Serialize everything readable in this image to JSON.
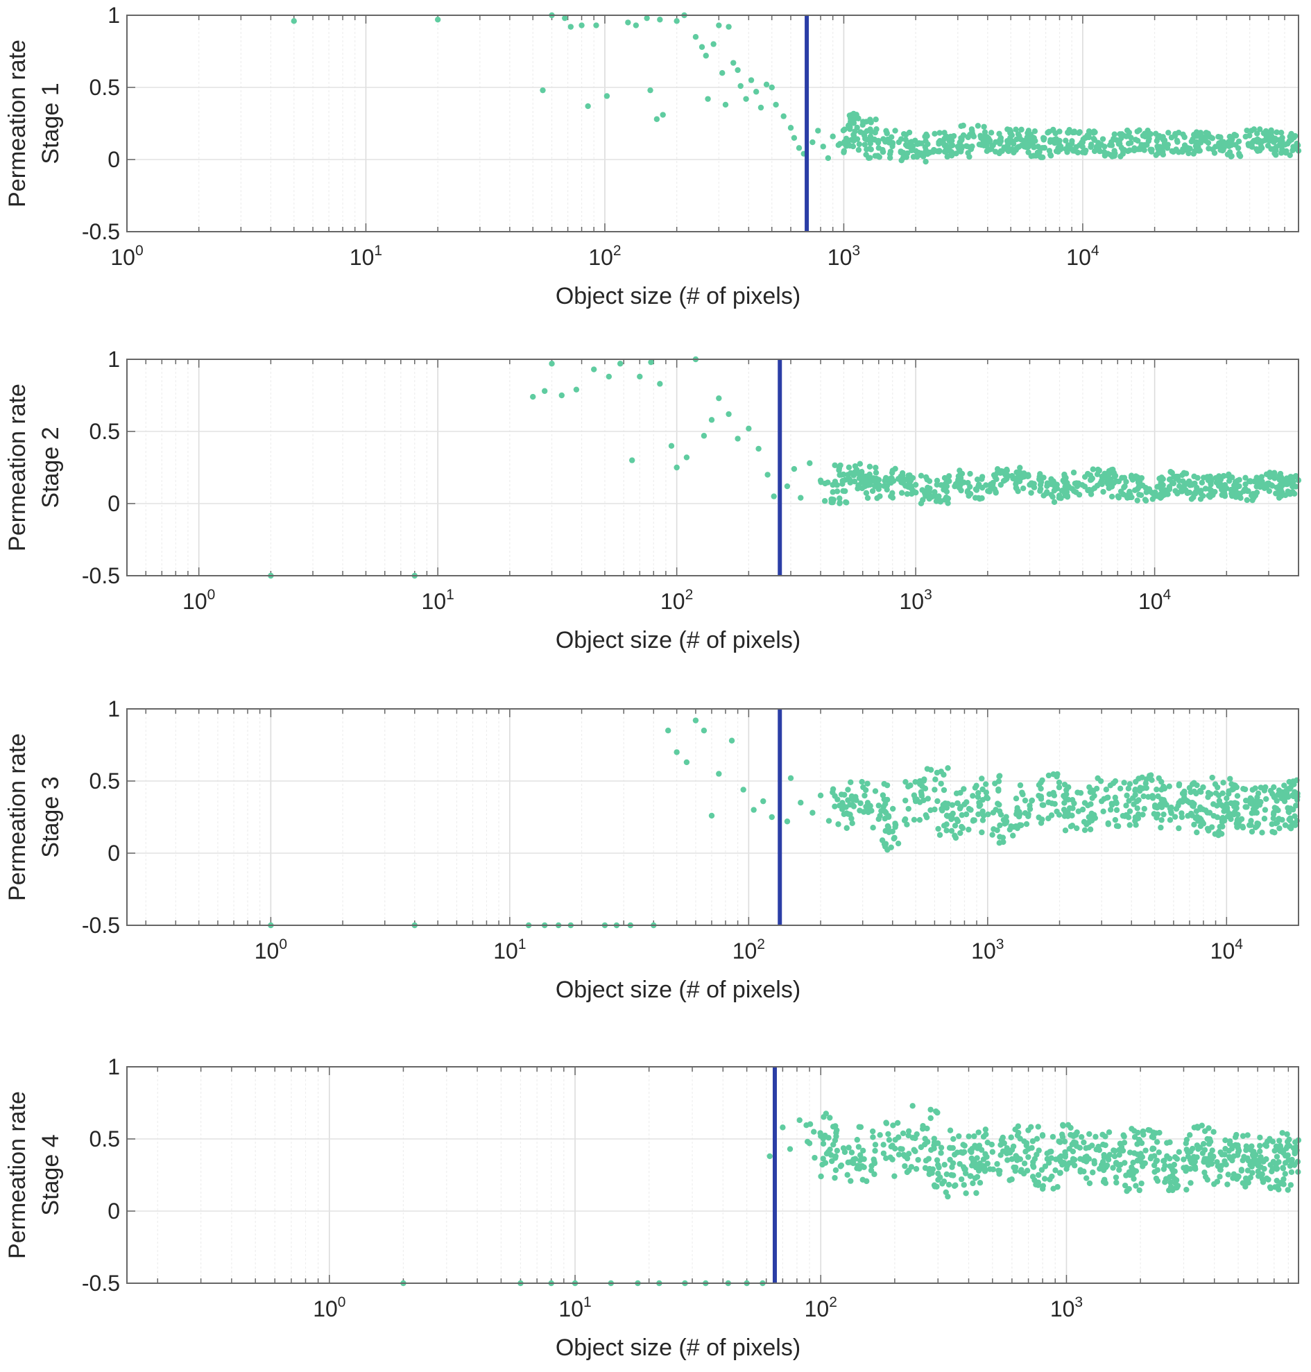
{
  "colors": {
    "points": "#5fcca0",
    "threshold": "#2b3ea6",
    "axis": "#666666",
    "grid": "#e6e6e6"
  },
  "chart_data": [
    {
      "type": "scatter",
      "xlabel": "Object size (# of pixels)",
      "ylabel_line1": "Permeation rate",
      "ylabel_line2": "Stage 1",
      "xscale": "log",
      "xlim": [
        1,
        80000
      ],
      "ylim": [
        -0.5,
        1
      ],
      "xticks": [
        1,
        10,
        100,
        1000,
        10000
      ],
      "xtick_labels": [
        "10^0",
        "10^1",
        "10^2",
        "10^3",
        "10^4"
      ],
      "yticks": [
        -0.5,
        0,
        0.5,
        1
      ],
      "ytick_labels": [
        "-0.5",
        "0",
        "0.5",
        "1"
      ],
      "grid": true,
      "threshold_x": 700,
      "points": [
        [
          5,
          0.96
        ],
        [
          20,
          0.97
        ],
        [
          55,
          0.48
        ],
        [
          60,
          1.0
        ],
        [
          68,
          0.98
        ],
        [
          72,
          0.92
        ],
        [
          80,
          0.93
        ],
        [
          85,
          0.37
        ],
        [
          92,
          0.93
        ],
        [
          102,
          0.44
        ],
        [
          125,
          0.95
        ],
        [
          135,
          0.93
        ],
        [
          150,
          0.98
        ],
        [
          155,
          0.48
        ],
        [
          170,
          0.97
        ],
        [
          165,
          0.28
        ],
        [
          175,
          0.31
        ],
        [
          200,
          0.96
        ],
        [
          215,
          1.0
        ],
        [
          240,
          0.85
        ],
        [
          255,
          0.78
        ],
        [
          265,
          0.72
        ],
        [
          270,
          0.42
        ],
        [
          285,
          0.8
        ],
        [
          300,
          0.93
        ],
        [
          310,
          0.6
        ],
        [
          320,
          0.38
        ],
        [
          330,
          0.92
        ],
        [
          345,
          0.67
        ],
        [
          360,
          0.62
        ],
        [
          370,
          0.51
        ],
        [
          390,
          0.42
        ],
        [
          410,
          0.55
        ],
        [
          430,
          0.47
        ],
        [
          450,
          0.36
        ],
        [
          475,
          0.52
        ],
        [
          500,
          0.5
        ],
        [
          520,
          0.38
        ],
        [
          560,
          0.3
        ],
        [
          600,
          0.22
        ],
        [
          620,
          0.15
        ],
        [
          650,
          0.08
        ],
        [
          680,
          0.04
        ],
        [
          740,
          0.12
        ],
        [
          780,
          0.2
        ],
        [
          820,
          0.09
        ],
        [
          860,
          0.01
        ],
        [
          900,
          0.16
        ],
        [
          950,
          0.1
        ],
        [
          1000,
          0.05
        ],
        [
          1100,
          0.13
        ],
        [
          1200,
          0.24
        ],
        [
          1400,
          0.08
        ],
        [
          1700,
          0.12
        ],
        [
          2000,
          0.06
        ],
        [
          2500,
          0.12
        ],
        [
          3000,
          0.09
        ],
        [
          3500,
          0.16
        ],
        [
          4500,
          0.11
        ],
        [
          5500,
          0.14
        ],
        [
          6500,
          0.09
        ],
        [
          8000,
          0.13
        ],
        [
          10000,
          0.12
        ],
        [
          13000,
          0.1
        ],
        [
          17000,
          0.13
        ],
        [
          22000,
          0.11
        ],
        [
          30000,
          0.12
        ],
        [
          40000,
          0.1
        ],
        [
          55000,
          0.13
        ],
        [
          72000,
          0.11
        ]
      ]
    },
    {
      "type": "scatter",
      "xlabel": "Object size (# of pixels)",
      "ylabel_line1": "Permeation rate",
      "ylabel_line2": "Stage 2",
      "xscale": "log",
      "xlim": [
        0.5,
        40000
      ],
      "ylim": [
        -0.5,
        1
      ],
      "xticks": [
        1,
        10,
        100,
        1000,
        10000
      ],
      "xtick_labels": [
        "10^0",
        "10^1",
        "10^2",
        "10^3",
        "10^4"
      ],
      "yticks": [
        -0.5,
        0,
        0.5,
        1
      ],
      "ytick_labels": [
        "-0.5",
        "0",
        "0.5",
        "1"
      ],
      "grid": true,
      "threshold_x": 270,
      "points": [
        [
          2,
          -0.5
        ],
        [
          8,
          -0.5
        ],
        [
          25,
          0.74
        ],
        [
          28,
          0.78
        ],
        [
          30,
          0.97
        ],
        [
          33,
          0.75
        ],
        [
          38,
          0.79
        ],
        [
          45,
          0.93
        ],
        [
          52,
          0.88
        ],
        [
          58,
          0.97
        ],
        [
          65,
          0.3
        ],
        [
          70,
          0.88
        ],
        [
          78,
          0.98
        ],
        [
          85,
          0.83
        ],
        [
          95,
          0.4
        ],
        [
          100,
          0.25
        ],
        [
          110,
          0.32
        ],
        [
          120,
          1.0
        ],
        [
          130,
          0.47
        ],
        [
          140,
          0.58
        ],
        [
          150,
          0.73
        ],
        [
          165,
          0.62
        ],
        [
          180,
          0.45
        ],
        [
          200,
          0.52
        ],
        [
          220,
          0.38
        ],
        [
          240,
          0.2
        ],
        [
          255,
          0.05
        ],
        [
          290,
          0.12
        ],
        [
          310,
          0.24
        ],
        [
          330,
          0.04
        ],
        [
          360,
          0.28
        ],
        [
          400,
          0.16
        ],
        [
          450,
          0.08
        ],
        [
          520,
          0.2
        ],
        [
          600,
          0.18
        ],
        [
          700,
          0.1
        ],
        [
          850,
          0.17
        ],
        [
          1000,
          0.13
        ],
        [
          1200,
          0.08
        ],
        [
          1500,
          0.15
        ],
        [
          1900,
          0.11
        ],
        [
          2400,
          0.17
        ],
        [
          3000,
          0.13
        ],
        [
          3800,
          0.09
        ],
        [
          4800,
          0.14
        ],
        [
          6000,
          0.16
        ],
        [
          7500,
          0.12
        ],
        [
          9500,
          0.1
        ],
        [
          12000,
          0.14
        ],
        [
          15000,
          0.11
        ],
        [
          19000,
          0.13
        ],
        [
          24000,
          0.1
        ],
        [
          30000,
          0.14
        ],
        [
          38000,
          0.12
        ]
      ]
    },
    {
      "type": "scatter",
      "xlabel": "Object size (# of pixels)",
      "ylabel_line1": "Permeation rate",
      "ylabel_line2": "Stage 3",
      "xscale": "log",
      "xlim": [
        0.25,
        20000
      ],
      "ylim": [
        -0.5,
        1
      ],
      "xticks": [
        1,
        10,
        100,
        1000,
        10000
      ],
      "xtick_labels": [
        "10^0",
        "10^1",
        "10^2",
        "10^3",
        "10^4"
      ],
      "yticks": [
        -0.5,
        0,
        0.5,
        1
      ],
      "ytick_labels": [
        "-0.5",
        "0",
        "0.5",
        "1"
      ],
      "grid": true,
      "threshold_x": 135,
      "points": [
        [
          1,
          -0.5
        ],
        [
          4,
          -0.5
        ],
        [
          12,
          -0.5
        ],
        [
          14,
          -0.5
        ],
        [
          16,
          -0.5
        ],
        [
          18,
          -0.5
        ],
        [
          25,
          -0.5
        ],
        [
          28,
          -0.5
        ],
        [
          32,
          -0.5
        ],
        [
          40,
          -0.5
        ],
        [
          46,
          0.85
        ],
        [
          50,
          0.7
        ],
        [
          55,
          0.63
        ],
        [
          60,
          0.92
        ],
        [
          65,
          0.85
        ],
        [
          70,
          0.26
        ],
        [
          75,
          0.55
        ],
        [
          85,
          0.78
        ],
        [
          95,
          0.44
        ],
        [
          105,
          0.3
        ],
        [
          115,
          0.36
        ],
        [
          125,
          0.25
        ],
        [
          145,
          0.22
        ],
        [
          150,
          0.52
        ],
        [
          165,
          0.35
        ],
        [
          185,
          0.28
        ],
        [
          200,
          0.4
        ],
        [
          240,
          0.33
        ],
        [
          280,
          0.39
        ],
        [
          350,
          0.33
        ],
        [
          400,
          0.15
        ],
        [
          500,
          0.36
        ],
        [
          600,
          0.44
        ],
        [
          700,
          0.26
        ],
        [
          850,
          0.3
        ],
        [
          1000,
          0.38
        ],
        [
          1200,
          0.22
        ],
        [
          1500,
          0.33
        ],
        [
          1900,
          0.4
        ],
        [
          2400,
          0.29
        ],
        [
          3000,
          0.36
        ],
        [
          3800,
          0.33
        ],
        [
          4700,
          0.39
        ],
        [
          5800,
          0.31
        ],
        [
          7000,
          0.35
        ],
        [
          8500,
          0.28
        ],
        [
          10000,
          0.38
        ],
        [
          12000,
          0.32
        ],
        [
          14500,
          0.3
        ],
        [
          17500,
          0.36
        ],
        [
          19500,
          0.33
        ]
      ]
    },
    {
      "type": "scatter",
      "xlabel": "Object size (# of pixels)",
      "ylabel_line1": "Permeation rate",
      "ylabel_line2": "Stage 4",
      "xscale": "log",
      "xlim": [
        0.15,
        8800
      ],
      "ylim": [
        -0.5,
        1
      ],
      "xticks": [
        1,
        10,
        100,
        1000
      ],
      "xtick_labels": [
        "10^0",
        "10^1",
        "10^2",
        "10^3"
      ],
      "yticks": [
        -0.5,
        0,
        0.5,
        1
      ],
      "ytick_labels": [
        "-0.5",
        "0",
        "0.5",
        "1"
      ],
      "grid": true,
      "threshold_x": 65,
      "points": [
        [
          2,
          -0.5
        ],
        [
          6,
          -0.5
        ],
        [
          8,
          -0.5
        ],
        [
          10,
          -0.5
        ],
        [
          14,
          -0.5
        ],
        [
          18,
          -0.5
        ],
        [
          22,
          -0.5
        ],
        [
          28,
          -0.5
        ],
        [
          34,
          -0.5
        ],
        [
          42,
          -0.5
        ],
        [
          50,
          -0.5
        ],
        [
          58,
          -0.5
        ],
        [
          62,
          0.38
        ],
        [
          70,
          0.58
        ],
        [
          75,
          0.43
        ],
        [
          82,
          0.63
        ],
        [
          90,
          0.47
        ],
        [
          100,
          0.52
        ],
        [
          115,
          0.38
        ],
        [
          130,
          0.44
        ],
        [
          150,
          0.36
        ],
        [
          180,
          0.46
        ],
        [
          220,
          0.38
        ],
        [
          260,
          0.57
        ],
        [
          300,
          0.32
        ],
        [
          340,
          0.25
        ],
        [
          380,
          0.46
        ],
        [
          440,
          0.28
        ],
        [
          500,
          0.41
        ],
        [
          600,
          0.36
        ],
        [
          700,
          0.43
        ],
        [
          820,
          0.31
        ],
        [
          950,
          0.38
        ],
        [
          1100,
          0.45
        ],
        [
          1300,
          0.33
        ],
        [
          1500,
          0.39
        ],
        [
          1800,
          0.27
        ],
        [
          2100,
          0.42
        ],
        [
          2500,
          0.35
        ],
        [
          3000,
          0.3
        ],
        [
          3500,
          0.44
        ],
        [
          4100,
          0.34
        ],
        [
          4800,
          0.38
        ],
        [
          5600,
          0.32
        ],
        [
          6500,
          0.36
        ],
        [
          7600,
          0.3
        ],
        [
          8500,
          0.41
        ]
      ]
    }
  ]
}
